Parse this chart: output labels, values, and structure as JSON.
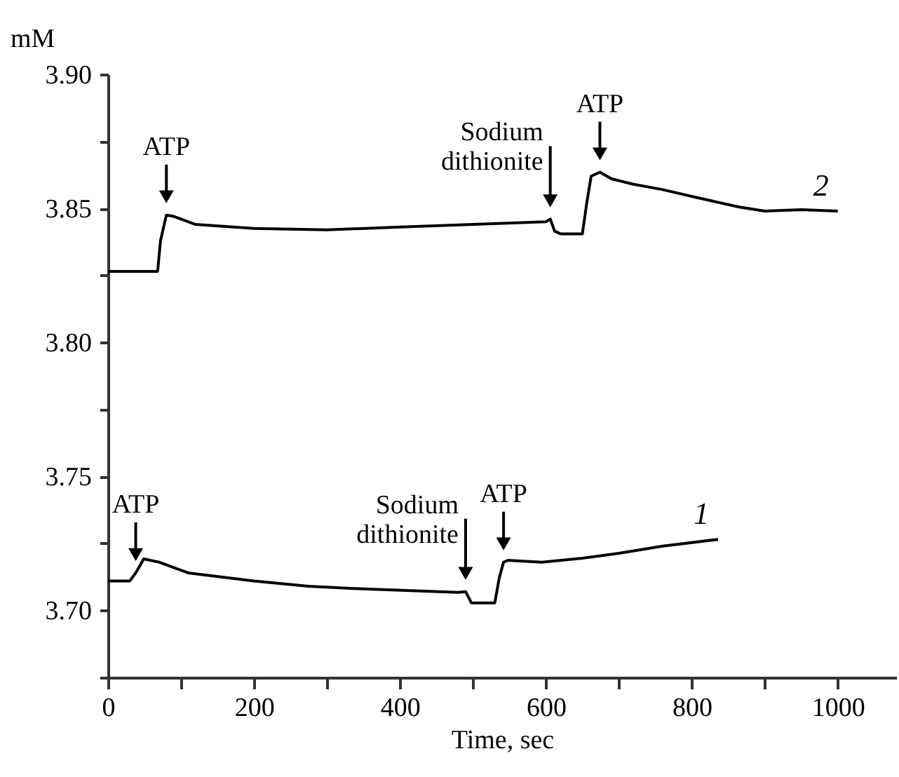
{
  "chart_data": {
    "type": "line",
    "xlabel": "Time, sec",
    "ylabel": "mM",
    "xlim": [
      0,
      1080
    ],
    "ylim": [
      3.675,
      3.9
    ],
    "xticks": [
      0,
      {
        "value": 100,
        "label": null
      },
      200,
      {
        "value": 300,
        "label": null
      },
      400,
      {
        "value": 500,
        "label": null
      },
      600,
      {
        "value": 700,
        "label": null
      },
      800,
      {
        "value": 900,
        "label": null
      },
      1000
    ],
    "yticks": [
      {
        "value": 3.675,
        "label": null
      },
      {
        "value": 3.7,
        "label": "3.70"
      },
      {
        "value": 3.725,
        "label": null
      },
      3.75,
      {
        "value": 3.775,
        "label": null
      },
      {
        "value": 3.8,
        "label": "3.80"
      },
      {
        "value": 3.825,
        "label": null
      },
      3.85,
      {
        "value": 3.875,
        "label": null
      },
      {
        "value": 3.9,
        "label": "3.90"
      }
    ],
    "grid": false,
    "marker": "none",
    "line_style": "solid",
    "series": [
      {
        "name": "2",
        "color": "#000000",
        "x": [
          0,
          68,
          72,
          80,
          90,
          120,
          200,
          300,
          400,
          500,
          600,
          606,
          612,
          620,
          650,
          656,
          662,
          674,
          690,
          720,
          760,
          807,
          865,
          900,
          950,
          1000
        ],
        "values": [
          3.8265,
          3.8265,
          3.838,
          3.8475,
          3.847,
          3.844,
          3.8425,
          3.842,
          3.843,
          3.844,
          3.845,
          3.846,
          3.8415,
          3.8405,
          3.8405,
          3.852,
          3.862,
          3.8635,
          3.861,
          3.859,
          3.857,
          3.854,
          3.8505,
          3.849,
          3.8495,
          3.849
        ]
      },
      {
        "name": "1",
        "color": "#000000",
        "x": [
          0,
          30,
          38,
          49,
          70,
          110,
          200,
          275,
          350,
          480,
          490,
          498,
          530,
          536,
          542,
          548,
          594,
          650,
          700,
          760,
          836
        ],
        "values": [
          3.711,
          3.711,
          3.714,
          3.7192,
          3.718,
          3.714,
          3.711,
          3.709,
          3.708,
          3.7067,
          3.707,
          3.7028,
          3.7028,
          3.712,
          3.718,
          3.7187,
          3.718,
          3.7195,
          3.7213,
          3.724,
          3.7265
        ]
      }
    ],
    "annotations": [
      {
        "text": "ATP",
        "x": 80,
        "y": 3.8475
      },
      {
        "text": "Sodium dithionite",
        "x": 606,
        "y": 3.846
      },
      {
        "text": "ATP",
        "x": 674,
        "y": 3.8635
      },
      {
        "text": "ATP",
        "x": 38,
        "y": 3.714
      },
      {
        "text": "Sodium dithionite",
        "x": 490,
        "y": 3.707
      },
      {
        "text": "ATP",
        "x": 542,
        "y": 3.718
      }
    ]
  }
}
